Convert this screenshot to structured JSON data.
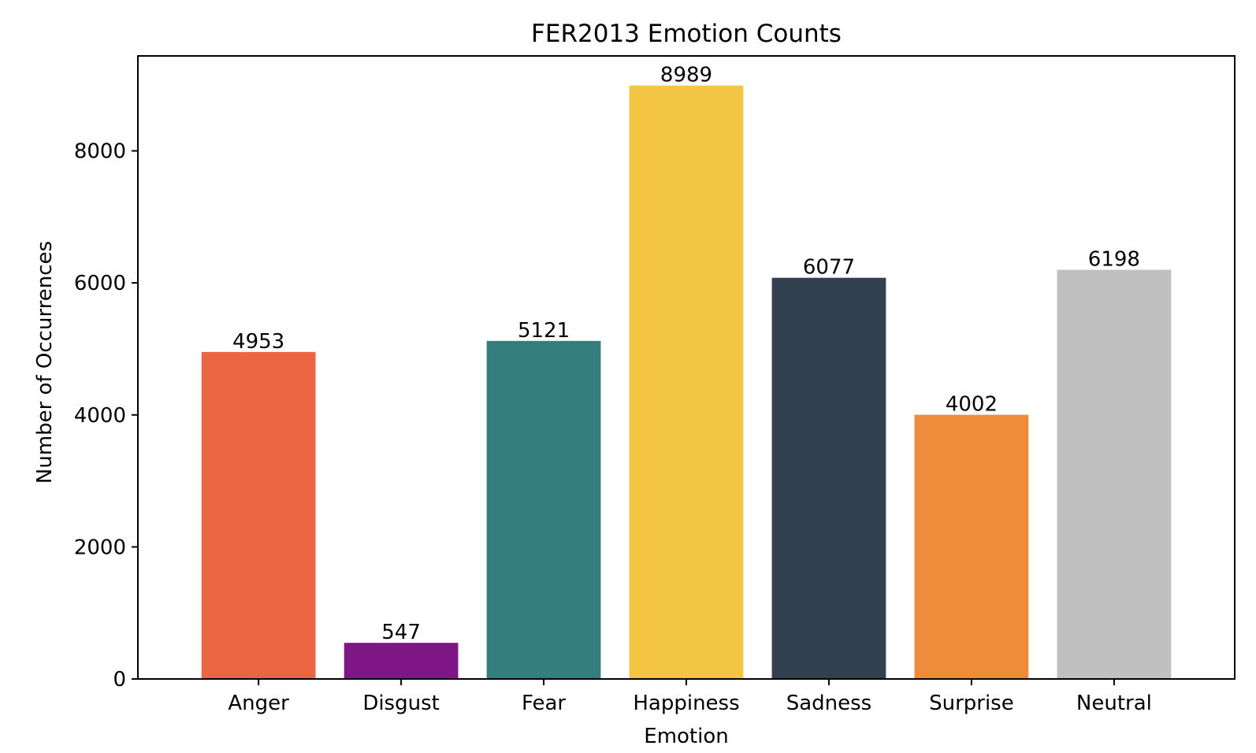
{
  "chart_data": {
    "type": "bar",
    "title": "FER2013 Emotion Counts",
    "xlabel": "Emotion",
    "ylabel": "Number of Occurrences",
    "categories": [
      "Anger",
      "Disgust",
      "Fear",
      "Happiness",
      "Sadness",
      "Surprise",
      "Neutral"
    ],
    "values": [
      4953,
      547,
      5121,
      8989,
      6077,
      4002,
      6198
    ],
    "data_labels": [
      "4953",
      "547",
      "5121",
      "8989",
      "6077",
      "4002",
      "6198"
    ],
    "colors": [
      "#EC6543",
      "#7E1785",
      "#367E7D",
      "#F4C443",
      "#324050",
      "#EE8C3C",
      "#C0C0C0"
    ],
    "ylim": [
      0,
      9438
    ],
    "yticks": [
      0,
      2000,
      4000,
      6000,
      8000
    ],
    "ytick_labels": [
      "0",
      "2000",
      "4000",
      "6000",
      "8000"
    ],
    "grid": false,
    "legend": "none"
  }
}
